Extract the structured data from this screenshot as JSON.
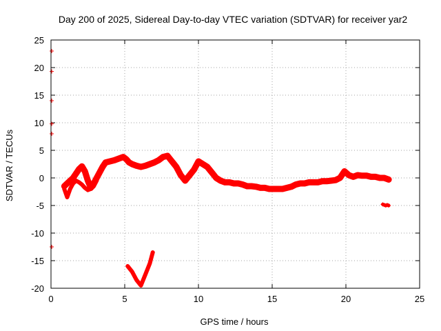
{
  "chart_data": {
    "type": "scatter",
    "title": "Day 200 of 2025, Sidereal Day-to-day VTEC variation (SDTVAR) for receiver yar2",
    "xlabel": "GPS time / hours",
    "ylabel": "SDTVAR / TECUs",
    "xlim": [
      0,
      25
    ],
    "ylim": [
      -20,
      25
    ],
    "xticks": [
      0,
      5,
      10,
      15,
      20,
      25
    ],
    "yticks": [
      25,
      20,
      15,
      10,
      5,
      0,
      -5,
      -10,
      -15,
      -20
    ],
    "xtick_labels": [
      "0",
      "5",
      "10",
      "15",
      "20",
      "25"
    ],
    "ytick_labels": [
      "25",
      "20",
      "15",
      "10",
      "5",
      "0",
      "-5",
      "-10",
      "-15",
      "-20"
    ],
    "grid": true,
    "marker": "plus",
    "color": "#ff0000",
    "series": [
      {
        "name": "main",
        "x": [
          0.9,
          1.1,
          1.3,
          1.5,
          1.7,
          1.9,
          2.1,
          2.3,
          2.5,
          2.7,
          2.9,
          3.1,
          3.3,
          3.5,
          3.7,
          4.0,
          4.3,
          4.6,
          4.9,
          5.1,
          5.3,
          5.5,
          5.8,
          6.1,
          6.4,
          6.7,
          7.0,
          7.3,
          7.6,
          7.9,
          8.2,
          8.5,
          8.8,
          9.1,
          9.4,
          9.7,
          10.0,
          10.3,
          10.6,
          10.9,
          11.2,
          11.5,
          11.8,
          12.1,
          12.4,
          12.7,
          13.0,
          13.3,
          13.6,
          13.9,
          14.2,
          14.5,
          14.8,
          15.1,
          15.4,
          15.7,
          16.0,
          16.3,
          16.6,
          16.9,
          17.2,
          17.5,
          17.8,
          18.1,
          18.4,
          18.7,
          19.0,
          19.3,
          19.6,
          19.9,
          20.2,
          20.5,
          20.8,
          21.1,
          21.4,
          21.7,
          22.0,
          22.3,
          22.6,
          22.9
        ],
        "y": [
          -1.5,
          -1.0,
          -0.5,
          0.0,
          0.8,
          1.6,
          2.1,
          1.2,
          -0.5,
          -1.8,
          -1.0,
          0.0,
          1.0,
          2.0,
          2.8,
          3.0,
          3.2,
          3.5,
          3.8,
          3.4,
          2.8,
          2.5,
          2.2,
          2.0,
          2.2,
          2.5,
          2.8,
          3.2,
          3.8,
          4.0,
          3.0,
          2.0,
          0.5,
          -0.5,
          0.5,
          1.5,
          3.0,
          2.5,
          2.0,
          1.0,
          0.0,
          -0.5,
          -0.8,
          -0.8,
          -1.0,
          -1.0,
          -1.2,
          -1.5,
          -1.5,
          -1.6,
          -1.8,
          -1.8,
          -2.0,
          -2.0,
          -2.0,
          -2.0,
          -1.8,
          -1.6,
          -1.2,
          -1.0,
          -1.0,
          -0.8,
          -0.8,
          -0.8,
          -0.6,
          -0.6,
          -0.5,
          -0.4,
          0.0,
          1.2,
          0.5,
          0.2,
          0.5,
          0.4,
          0.4,
          0.2,
          0.2,
          0.0,
          0.0,
          -0.3
        ]
      },
      {
        "name": "dip1",
        "x": [
          0.9,
          1.1,
          1.3,
          1.5
        ],
        "y": [
          -2.0,
          -3.5,
          -2.0,
          -1.0
        ]
      },
      {
        "name": "dip2",
        "x": [
          1.5,
          1.7,
          1.9,
          2.1,
          2.3,
          2.5,
          2.7,
          2.9,
          3.1
        ],
        "y": [
          -1.0,
          -0.5,
          -0.8,
          -1.2,
          -1.8,
          -2.2,
          -2.0,
          -1.5,
          -0.5
        ]
      },
      {
        "name": "segment_16h",
        "x": [
          5.2,
          5.5,
          5.8,
          6.1,
          6.4,
          6.7,
          6.9
        ],
        "y": [
          -16.0,
          -17.0,
          -18.5,
          -19.5,
          -17.5,
          -15.5,
          -13.5
        ]
      },
      {
        "name": "segment_neg5",
        "x": [
          22.5,
          22.6,
          22.7,
          22.8,
          22.9
        ],
        "y": [
          -4.8,
          -4.9,
          -5.0,
          -4.9,
          -5.0
        ]
      },
      {
        "name": "outliers_hour0",
        "x": [
          0.05,
          0.05,
          0.05,
          0.05,
          0.05,
          0.05
        ],
        "y": [
          23.0,
          19.3,
          14.0,
          9.8,
          8.0,
          -12.5
        ]
      }
    ]
  }
}
